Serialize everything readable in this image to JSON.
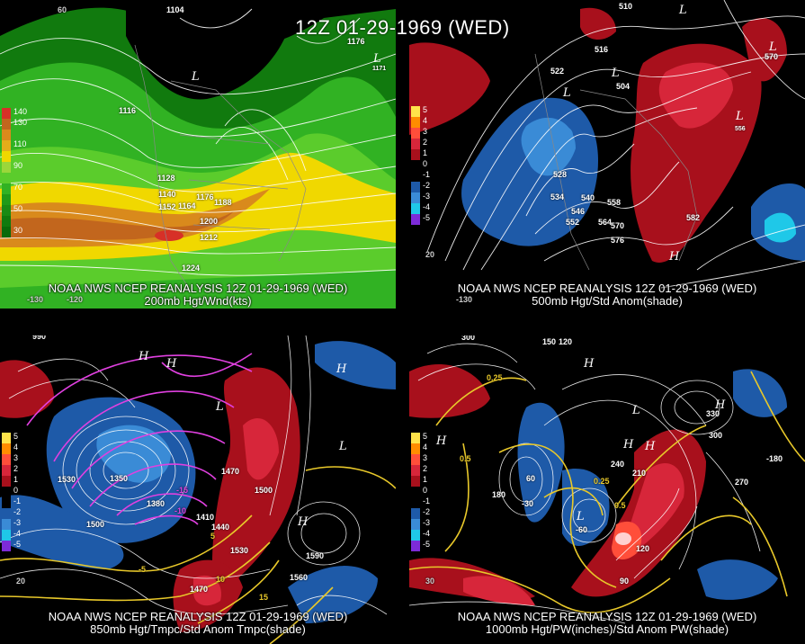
{
  "title": "12Z 01-29-1969 (WED)",
  "panels": [
    {
      "id": "p200",
      "caption1": "NOAA NWS NCEP REANALYSIS 12Z 01-29-1969 (WED)",
      "caption2": "200mb Hgt/Wnd(kts)",
      "legend": [
        {
          "label": "140",
          "color": "#d73027"
        },
        {
          "label": "130",
          "color": "#c2661d"
        },
        {
          "label": "",
          "color": "#d98a1c"
        },
        {
          "label": "110",
          "color": "#e3ad1a"
        },
        {
          "label": "",
          "color": "#f0d800"
        },
        {
          "label": "90",
          "color": "#9bd73a"
        },
        {
          "label": "",
          "color": "#5bcc2c"
        },
        {
          "label": "70",
          "color": "#31b223"
        },
        {
          "label": "",
          "color": "#209a18"
        },
        {
          "label": "50",
          "color": "#1a8a14"
        },
        {
          "label": "",
          "color": "#117a0e"
        },
        {
          "label": "30",
          "color": "#0a6a0a"
        }
      ],
      "labels": [
        "1104",
        "1116",
        "1128",
        "1140",
        "1152",
        "1164",
        "1176",
        "1188",
        "1200",
        "1212",
        "1224",
        "1176",
        "1171",
        "60",
        "-130",
        "-120"
      ],
      "systems": [
        "L",
        "L"
      ]
    },
    {
      "id": "p500",
      "caption1": "NOAA NWS NCEP REANALYSIS 12Z 01-29-1969 (WED)",
      "caption2": "500mb Hgt/Std Anom(shade)",
      "legend": [
        {
          "label": "5",
          "color": "#ffe34a"
        },
        {
          "label": "4",
          "color": "#ff8c00"
        },
        {
          "label": "3",
          "color": "#ff4e3a"
        },
        {
          "label": "2",
          "color": "#d7263a"
        },
        {
          "label": "1",
          "color": "#a8101c"
        },
        {
          "label": "0",
          "color": "#000000"
        },
        {
          "label": "-1",
          "color": "#000000"
        },
        {
          "label": "-2",
          "color": "#1e5aa8"
        },
        {
          "label": "-3",
          "color": "#3a8bd6"
        },
        {
          "label": "-4",
          "color": "#1fc8e8"
        },
        {
          "label": "-5",
          "color": "#7d2bd8"
        }
      ],
      "labels": [
        "510",
        "516",
        "522",
        "528",
        "534",
        "540",
        "546",
        "552",
        "558",
        "564",
        "570",
        "576",
        "582",
        "504",
        "556",
        "570",
        "20",
        "-130"
      ],
      "systems": [
        "L",
        "L",
        "L",
        "L",
        "H",
        "L"
      ]
    },
    {
      "id": "p850",
      "caption1": "NOAA NWS NCEP REANALYSIS 12Z 01-29-1969 (WED)",
      "caption2": "850mb Hgt/Tmpc/Std Anom Tmpc(shade)",
      "legend": [
        {
          "label": "5",
          "color": "#ffe34a"
        },
        {
          "label": "4",
          "color": "#ff8c00"
        },
        {
          "label": "3",
          "color": "#ff4e3a"
        },
        {
          "label": "2",
          "color": "#d7263a"
        },
        {
          "label": "1",
          "color": "#a8101c"
        },
        {
          "label": "0",
          "color": "#000000"
        },
        {
          "label": "-1",
          "color": "#000000"
        },
        {
          "label": "-2",
          "color": "#1e5aa8"
        },
        {
          "label": "-3",
          "color": "#3a8bd6"
        },
        {
          "label": "-4",
          "color": "#1fc8e8"
        },
        {
          "label": "-5",
          "color": "#7d2bd8"
        }
      ],
      "labels": [
        "990",
        "1350",
        "1380",
        "1410",
        "1440",
        "1470",
        "1500",
        "1530",
        "1560",
        "1590",
        "1530",
        "1500",
        "1470",
        "-15",
        "-10",
        "-5",
        "5",
        "10",
        "15",
        "20"
      ],
      "systems": [
        "H",
        "H",
        "H",
        "L",
        "L",
        "H"
      ]
    },
    {
      "id": "p1000",
      "caption1": "NOAA NWS NCEP REANALYSIS 12Z 01-29-1969 (WED)",
      "caption2": "1000mb Hgt/PW(inches)/Std Anom PW(shade)",
      "legend": [
        {
          "label": "5",
          "color": "#ffe34a"
        },
        {
          "label": "4",
          "color": "#ff8c00"
        },
        {
          "label": "3",
          "color": "#ff4e3a"
        },
        {
          "label": "2",
          "color": "#d7263a"
        },
        {
          "label": "1",
          "color": "#a8101c"
        },
        {
          "label": "0",
          "color": "#000000"
        },
        {
          "label": "-1",
          "color": "#000000"
        },
        {
          "label": "-2",
          "color": "#1e5aa8"
        },
        {
          "label": "-3",
          "color": "#3a8bd6"
        },
        {
          "label": "-4",
          "color": "#1fc8e8"
        },
        {
          "label": "-5",
          "color": "#7d2bd8"
        }
      ],
      "labels": [
        "300",
        "150",
        "120",
        "180",
        "210",
        "240",
        "270",
        "300",
        "330",
        "-180",
        "60",
        "90",
        "120",
        "0.25",
        "0.5",
        "0.25",
        "0.5",
        "30",
        "-60",
        "-30"
      ],
      "systems": [
        "H",
        "H",
        "L",
        "H",
        "H",
        "L",
        "H"
      ]
    }
  ]
}
